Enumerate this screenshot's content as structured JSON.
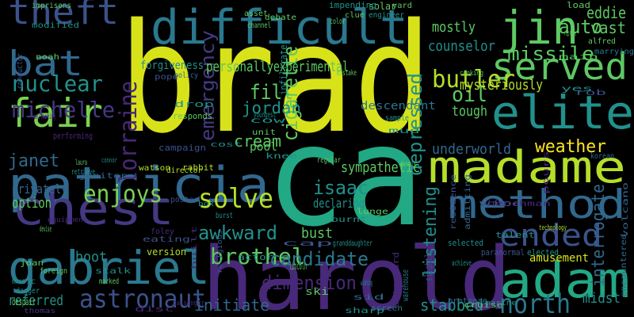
{
  "words": [
    "brad",
    "ca",
    "harold",
    "difficult",
    "patricia",
    "chest",
    "gabriel",
    "madame",
    "method",
    "adam",
    "elite",
    "served",
    "jin",
    "theft",
    "bat",
    "fair",
    "nuclear",
    "michelle",
    "janet",
    "enjoys",
    "solve",
    "astronaut",
    "ended",
    "north",
    "weather",
    "butler",
    "auto",
    "missile",
    "oil",
    "tough",
    "counselor",
    "mostly",
    "depressed",
    "listening",
    "lorraine",
    "emergency",
    "cigarette",
    "interrogate",
    "awkward",
    "isaac",
    "declaring",
    "brothel",
    "candidate",
    "dimension",
    "initiate",
    "stabbed",
    "underworld",
    "sympathetic",
    "mysteriously",
    "fill",
    "jordan",
    "cream",
    "personally",
    "experimental",
    "referred",
    "option",
    "privately",
    "boot",
    "eddie",
    "vast",
    "bust",
    "pool",
    "amusement",
    "forgiveness",
    "midst",
    "imprisons",
    "solar",
    "engineer",
    "impending",
    "clue",
    "yard",
    "load",
    "alfred",
    "marrying",
    "descendant",
    "infiltrates",
    "campaign",
    "watson",
    "rabbit",
    "director",
    "version",
    "actor",
    "lincoln",
    "ski",
    "wipe",
    "volcano",
    "encountered",
    "paranormal",
    "elected",
    "talent",
    "selected",
    "slightly",
    "pretense",
    "passenger",
    "despair",
    "thomas",
    "stalk",
    "marked",
    "foreign",
    "joan",
    "music",
    "dagger",
    "disc",
    "cruise",
    "screen",
    "warehouse",
    "afterward",
    "wishing",
    "achieve",
    "granddaughter",
    "cap",
    "drop",
    "responds",
    "performing",
    "retrieve",
    "janitor",
    "modified",
    "noah",
    "humiliating",
    "conductor",
    "laura",
    "connor",
    "korean",
    "rob",
    "yes",
    "main",
    "reprise",
    "cooking",
    "mistake",
    "youngest",
    "cow",
    "policy",
    "pope",
    "asset",
    "channel",
    "debate",
    "color",
    "burst",
    "burnt",
    "sample",
    "mud",
    "unit",
    "cost",
    "knee",
    "dennis",
    "lunge",
    "regular",
    "poster",
    "box",
    "eating",
    "foley",
    "devise",
    "built",
    "religious",
    "sharp",
    "sid",
    "residence",
    "admitting",
    "henchman",
    "pours",
    "marine",
    "technology",
    "equipment",
    "inadvertently",
    "catherine",
    "listens",
    "waking",
    "alongside"
  ]
}
